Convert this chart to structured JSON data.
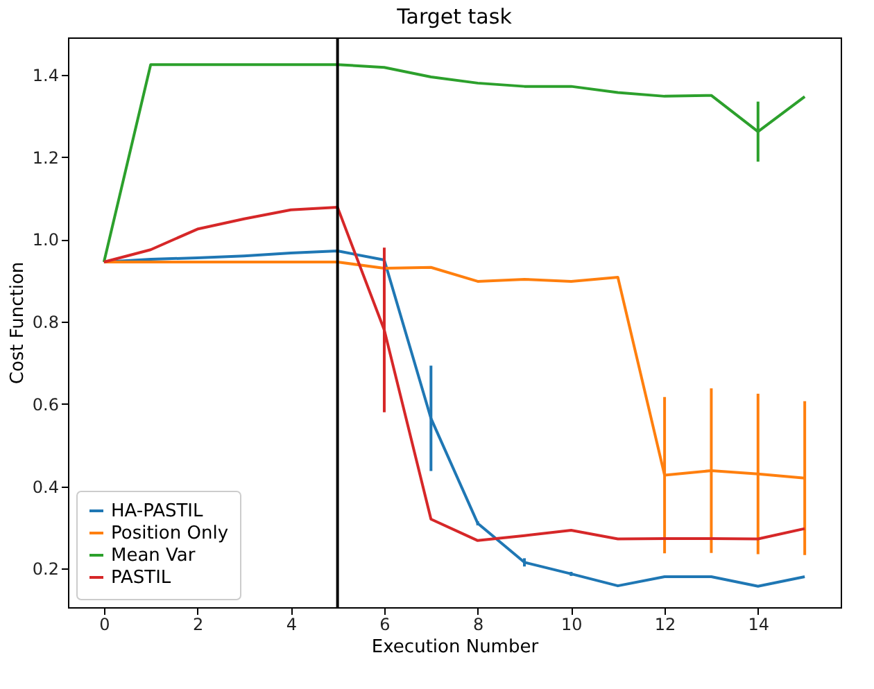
{
  "chart_data": {
    "type": "line",
    "title": "Target task",
    "xlabel": "Execution Number",
    "ylabel": "Cost Function",
    "x": [
      0,
      1,
      2,
      3,
      4,
      5,
      6,
      7,
      8,
      9,
      10,
      11,
      12,
      13,
      14,
      15
    ],
    "xlim": [
      -0.77,
      15.77
    ],
    "ylim": [
      0.106,
      1.491
    ],
    "xticks": [
      0,
      2,
      4,
      6,
      8,
      10,
      12,
      14
    ],
    "yticks": [
      0.2,
      0.4,
      0.6,
      0.8,
      {
        "value": 1,
        "label": "1.0"
      },
      1.2,
      1.4
    ],
    "series": [
      {
        "name": "HA-PASTIL",
        "color": "#1f77b4",
        "values": [
          0.945,
          0.952,
          0.955,
          0.96,
          0.967,
          0.972,
          0.95,
          0.565,
          0.31,
          0.215,
          0.187,
          0.158,
          0.18,
          0.18,
          0.157,
          0.18
        ],
        "errors": [
          null,
          null,
          null,
          null,
          null,
          null,
          null,
          0.128,
          0.005,
          0.01,
          0.005,
          null,
          null,
          null,
          null,
          null
        ]
      },
      {
        "name": "Position Only",
        "color": "#ff7f0e",
        "values": [
          0.945,
          0.945,
          0.945,
          0.945,
          0.945,
          0.945,
          0.93,
          0.932,
          0.898,
          0.903,
          0.898,
          0.908,
          0.427,
          0.438,
          0.43,
          0.42
        ],
        "errors": [
          null,
          null,
          null,
          null,
          null,
          null,
          null,
          null,
          null,
          null,
          null,
          null,
          0.19,
          0.2,
          0.195,
          0.187
        ]
      },
      {
        "name": "Mean Var",
        "color": "#2ca02c",
        "values": [
          0.945,
          1.425,
          1.425,
          1.425,
          1.425,
          1.425,
          1.418,
          1.395,
          1.38,
          1.372,
          1.372,
          1.357,
          1.348,
          1.35,
          1.262,
          1.347
        ],
        "errors": [
          null,
          null,
          null,
          null,
          null,
          null,
          null,
          null,
          null,
          null,
          null,
          null,
          null,
          null,
          0.073,
          null
        ]
      },
      {
        "name": "PASTIL",
        "color": "#d62728",
        "values": [
          0.945,
          0.975,
          1.025,
          1.05,
          1.072,
          1.078,
          0.78,
          0.32,
          0.268,
          0.28,
          0.293,
          0.272,
          0.273,
          0.273,
          0.272,
          0.297
        ],
        "errors": [
          null,
          null,
          null,
          null,
          null,
          null,
          0.2,
          null,
          null,
          null,
          null,
          null,
          null,
          null,
          null,
          null
        ]
      }
    ],
    "ref_lines": [
      {
        "axis": "x",
        "value": 5,
        "color": "#000000"
      }
    ],
    "legend": "bottom left",
    "grid": false,
    "marker": "none",
    "line_style": "solid"
  }
}
